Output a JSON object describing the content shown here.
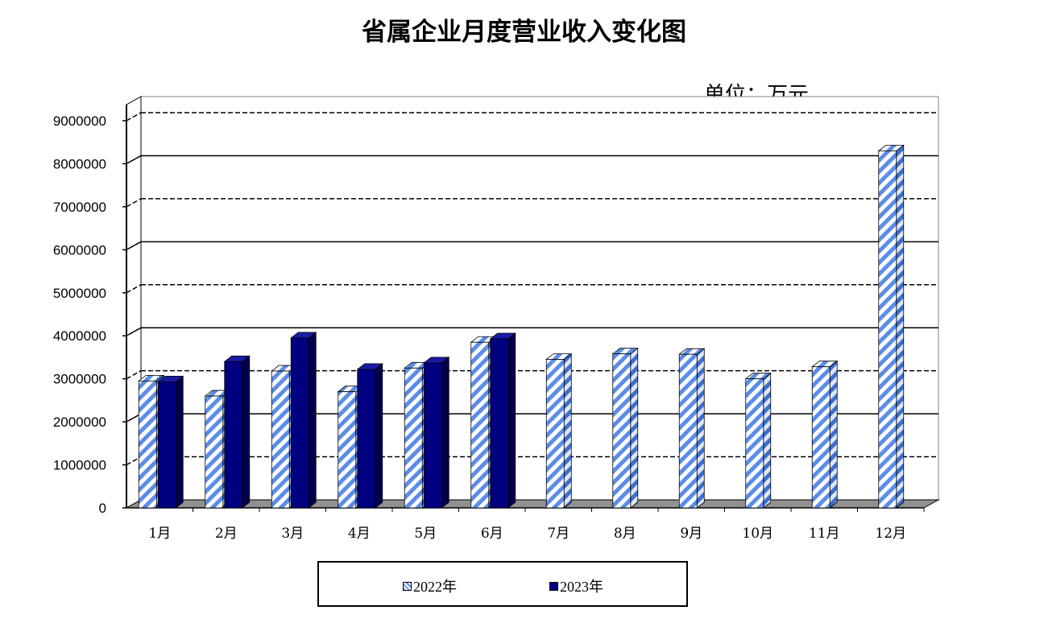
{
  "title": "省属企业月度营业收入变化图",
  "unit": "单位：万元",
  "colors": {
    "series_2022_stripe": "#5b8de8",
    "series_2022_base": "#ffffff",
    "series_2023": "#000080",
    "floor": "#909090",
    "grid": "#000000"
  },
  "chart_data": {
    "type": "bar",
    "title": "省属企业月度营业收入变化图",
    "unit": "单位：万元",
    "categories": [
      "1月",
      "2月",
      "3月",
      "4月",
      "5月",
      "6月",
      "7月",
      "8月",
      "9月",
      "10月",
      "11月",
      "12月"
    ],
    "series": [
      {
        "name": "2022年",
        "values": [
          2950000,
          2600000,
          3180000,
          2700000,
          3250000,
          3850000,
          3450000,
          3580000,
          3570000,
          3000000,
          3280000,
          8300000
        ]
      },
      {
        "name": "2023年",
        "values": [
          2930000,
          3400000,
          3950000,
          3220000,
          3370000,
          3930000,
          null,
          null,
          null,
          null,
          null,
          null
        ]
      }
    ],
    "yticks": [
      "0",
      "1000000",
      "2000000",
      "3000000",
      "4000000",
      "5000000",
      "6000000",
      "7000000",
      "8000000",
      "9000000"
    ],
    "ylim": [
      0,
      9000000
    ],
    "grid": true,
    "legend_position": "bottom"
  }
}
